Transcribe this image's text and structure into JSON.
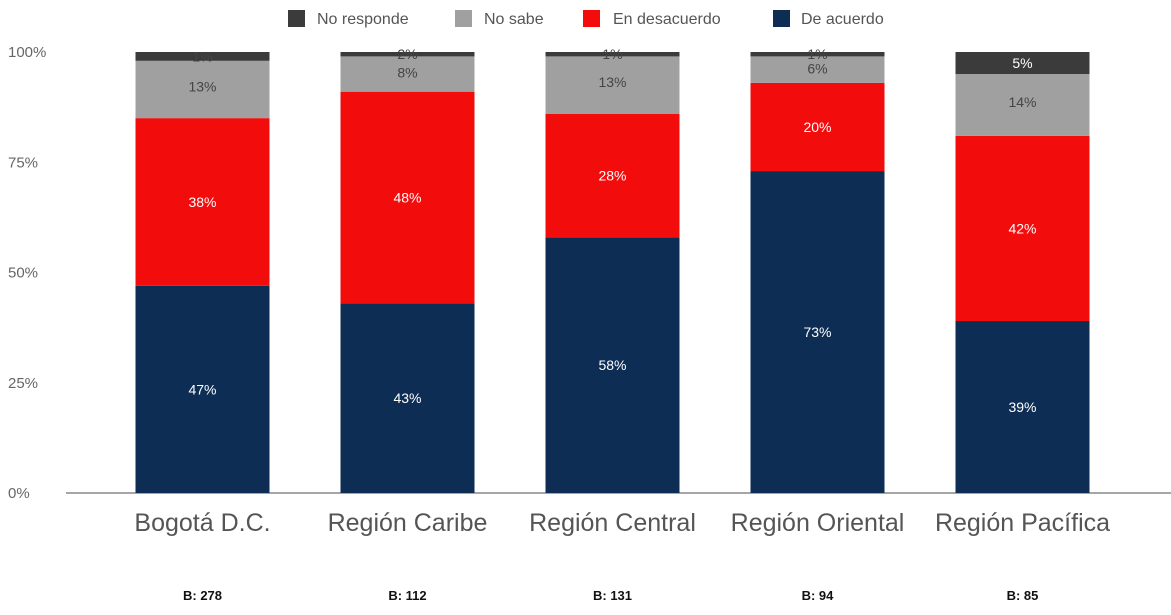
{
  "chart_data": {
    "type": "bar",
    "stacked": true,
    "categories": [
      "Bogotá D.C.",
      "Región Caribe",
      "Región Central",
      "Región Oriental",
      "Región Pacífica"
    ],
    "bases": [
      "B: 278",
      "B: 112",
      "B: 131",
      "B: 94",
      "B: 85"
    ],
    "series": [
      {
        "name": "De acuerdo",
        "color": "#0e2d55",
        "values": [
          47,
          43,
          58,
          73,
          39
        ],
        "labels": [
          "47%",
          "43%",
          "58%",
          "73%",
          "39%"
        ]
      },
      {
        "name": "En desacuerdo",
        "color": "#f20c0c",
        "values": [
          38,
          48,
          28,
          20,
          42
        ],
        "labels": [
          "38%",
          "48%",
          "28%",
          "20%",
          "42%"
        ]
      },
      {
        "name": "No sabe",
        "color": "#a0a0a0",
        "values": [
          13,
          8,
          13,
          6,
          14
        ],
        "labels": [
          "13%",
          "8%",
          "13%",
          "6%",
          "14%"
        ]
      },
      {
        "name": "No responde",
        "color": "#3b3b3b",
        "values": [
          1,
          2,
          1,
          1,
          5
        ],
        "labels": [
          "1%",
          "2%",
          "1%",
          "1%",
          "5%"
        ]
      }
    ],
    "legend_order": [
      "No responde",
      "No sabe",
      "En desacuerdo",
      "De acuerdo"
    ],
    "legend_position": "top",
    "yticks": [
      "0%",
      "25%",
      "50%",
      "75%",
      "100%"
    ],
    "ylim": [
      0,
      100
    ],
    "grid": false
  }
}
